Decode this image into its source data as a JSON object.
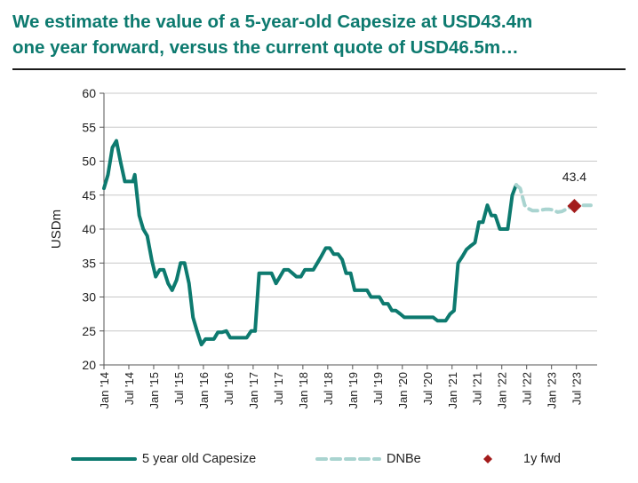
{
  "title_line1": "We estimate the value of a 5-year-old Capesize at USD43.4m",
  "title_line2": "one year forward, versus the current quote of USD46.5m…",
  "chart_data": {
    "type": "line",
    "title": "We estimate the value of a 5-year-old Capesize at USD43.4m one year forward, versus the current quote of USD46.5m…",
    "ylabel": "USDm",
    "xlabel": "",
    "ylim": [
      20,
      60
    ],
    "yticks": [
      20,
      25,
      30,
      35,
      40,
      45,
      50,
      55,
      60
    ],
    "xlim": [
      2014.0,
      2023.917
    ],
    "xticks": [
      {
        "x": 2014.0,
        "label": "Jan '14"
      },
      {
        "x": 2014.5,
        "label": "Jul '14"
      },
      {
        "x": 2015.0,
        "label": "Jan '15"
      },
      {
        "x": 2015.5,
        "label": "Jul '15"
      },
      {
        "x": 2016.0,
        "label": "Jan '16"
      },
      {
        "x": 2016.5,
        "label": "Jul '16"
      },
      {
        "x": 2017.0,
        "label": "Jan '17"
      },
      {
        "x": 2017.5,
        "label": "Jul '17"
      },
      {
        "x": 2018.0,
        "label": "Jan '18"
      },
      {
        "x": 2018.5,
        "label": "Jul '18"
      },
      {
        "x": 2019.0,
        "label": "Jan '19"
      },
      {
        "x": 2019.5,
        "label": "Jul '19"
      },
      {
        "x": 2020.0,
        "label": "Jan '20"
      },
      {
        "x": 2020.5,
        "label": "Jul '20"
      },
      {
        "x": 2021.0,
        "label": "Jan '21"
      },
      {
        "x": 2021.5,
        "label": "Jul '21"
      },
      {
        "x": 2022.0,
        "label": "Jan '22"
      },
      {
        "x": 2022.5,
        "label": "Jul '22"
      },
      {
        "x": 2023.0,
        "label": "Jan '23"
      },
      {
        "x": 2023.5,
        "label": "Jul '23"
      }
    ],
    "grid": true,
    "series": [
      {
        "name": "5 year old Capesize",
        "color": "#0d7a6f",
        "style": "solid",
        "points": [
          [
            2014.0,
            46
          ],
          [
            2014.08,
            48
          ],
          [
            2014.17,
            52
          ],
          [
            2014.25,
            53
          ],
          [
            2014.33,
            50
          ],
          [
            2014.42,
            47
          ],
          [
            2014.5,
            47
          ],
          [
            2014.58,
            47
          ],
          [
            2014.62,
            48
          ],
          [
            2014.71,
            42
          ],
          [
            2014.79,
            40
          ],
          [
            2014.87,
            39
          ],
          [
            2014.96,
            35.5
          ],
          [
            2015.04,
            33
          ],
          [
            2015.12,
            34
          ],
          [
            2015.2,
            34
          ],
          [
            2015.29,
            32
          ],
          [
            2015.37,
            31
          ],
          [
            2015.46,
            32.5
          ],
          [
            2015.54,
            35
          ],
          [
            2015.62,
            35
          ],
          [
            2015.71,
            32
          ],
          [
            2015.79,
            27
          ],
          [
            2015.87,
            25
          ],
          [
            2015.96,
            23
          ],
          [
            2016.04,
            23.8
          ],
          [
            2016.12,
            23.8
          ],
          [
            2016.21,
            23.8
          ],
          [
            2016.29,
            24.8
          ],
          [
            2016.37,
            24.8
          ],
          [
            2016.46,
            25
          ],
          [
            2016.54,
            24
          ],
          [
            2016.62,
            24
          ],
          [
            2016.71,
            24
          ],
          [
            2016.79,
            24
          ],
          [
            2016.87,
            24
          ],
          [
            2016.96,
            25
          ],
          [
            2017.04,
            25
          ],
          [
            2017.12,
            33.5
          ],
          [
            2017.21,
            33.5
          ],
          [
            2017.29,
            33.5
          ],
          [
            2017.37,
            33.5
          ],
          [
            2017.46,
            32
          ],
          [
            2017.54,
            33
          ],
          [
            2017.62,
            34
          ],
          [
            2017.71,
            34
          ],
          [
            2017.79,
            33.5
          ],
          [
            2017.87,
            33
          ],
          [
            2017.96,
            33
          ],
          [
            2018.04,
            34
          ],
          [
            2018.12,
            34
          ],
          [
            2018.21,
            34
          ],
          [
            2018.29,
            35
          ],
          [
            2018.37,
            36
          ],
          [
            2018.46,
            37.2
          ],
          [
            2018.54,
            37.2
          ],
          [
            2018.62,
            36.3
          ],
          [
            2018.71,
            36.3
          ],
          [
            2018.79,
            35.5
          ],
          [
            2018.87,
            33.5
          ],
          [
            2018.96,
            33.5
          ],
          [
            2019.04,
            31
          ],
          [
            2019.12,
            31
          ],
          [
            2019.21,
            31
          ],
          [
            2019.29,
            31
          ],
          [
            2019.37,
            30
          ],
          [
            2019.46,
            30
          ],
          [
            2019.54,
            30
          ],
          [
            2019.62,
            29
          ],
          [
            2019.71,
            29
          ],
          [
            2019.79,
            28
          ],
          [
            2019.87,
            28
          ],
          [
            2019.96,
            27.5
          ],
          [
            2020.04,
            27
          ],
          [
            2020.12,
            27
          ],
          [
            2020.21,
            27
          ],
          [
            2020.29,
            27
          ],
          [
            2020.37,
            27
          ],
          [
            2020.46,
            27
          ],
          [
            2020.54,
            27
          ],
          [
            2020.62,
            27
          ],
          [
            2020.71,
            26.5
          ],
          [
            2020.79,
            26.5
          ],
          [
            2020.87,
            26.5
          ],
          [
            2020.96,
            27.5
          ],
          [
            2021.04,
            28
          ],
          [
            2021.12,
            35
          ],
          [
            2021.21,
            36
          ],
          [
            2021.29,
            37
          ],
          [
            2021.37,
            37.5
          ],
          [
            2021.46,
            38
          ],
          [
            2021.54,
            41
          ],
          [
            2021.62,
            41
          ],
          [
            2021.71,
            43.5
          ],
          [
            2021.79,
            42
          ],
          [
            2021.87,
            42
          ],
          [
            2021.96,
            40
          ],
          [
            2022.04,
            40
          ],
          [
            2022.12,
            40
          ],
          [
            2022.21,
            45
          ],
          [
            2022.29,
            46.5
          ]
        ]
      },
      {
        "name": "DNBe",
        "color": "#a9d4d0",
        "style": "dashed",
        "points": [
          [
            2022.29,
            46.5
          ],
          [
            2022.37,
            46
          ],
          [
            2022.46,
            43.5
          ],
          [
            2022.54,
            43
          ],
          [
            2022.62,
            42.7
          ],
          [
            2022.71,
            42.7
          ],
          [
            2022.79,
            42.8
          ],
          [
            2022.87,
            42.9
          ],
          [
            2022.96,
            42.9
          ],
          [
            2023.04,
            42.8
          ],
          [
            2023.12,
            42.5
          ],
          [
            2023.21,
            42.6
          ],
          [
            2023.29,
            42.9
          ],
          [
            2023.37,
            43.2
          ],
          [
            2023.46,
            43.4
          ],
          [
            2023.54,
            43.5
          ],
          [
            2023.62,
            43.5
          ],
          [
            2023.71,
            43.5
          ],
          [
            2023.79,
            43.5
          ]
        ]
      }
    ],
    "markers": [
      {
        "name": "1y fwd",
        "x": 2023.46,
        "y": 43.4,
        "label": "43.4",
        "color": "#a31b1b",
        "shape": "diamond"
      }
    ],
    "legend": {
      "position": "bottom",
      "items": [
        {
          "label": "5 year old Capesize",
          "color": "#0d7a6f",
          "style": "solid"
        },
        {
          "label": "DNBe",
          "color": "#a9d4d0",
          "style": "dashed"
        },
        {
          "label": "1y fwd",
          "color": "#a31b1b",
          "style": "diamond"
        }
      ]
    }
  }
}
